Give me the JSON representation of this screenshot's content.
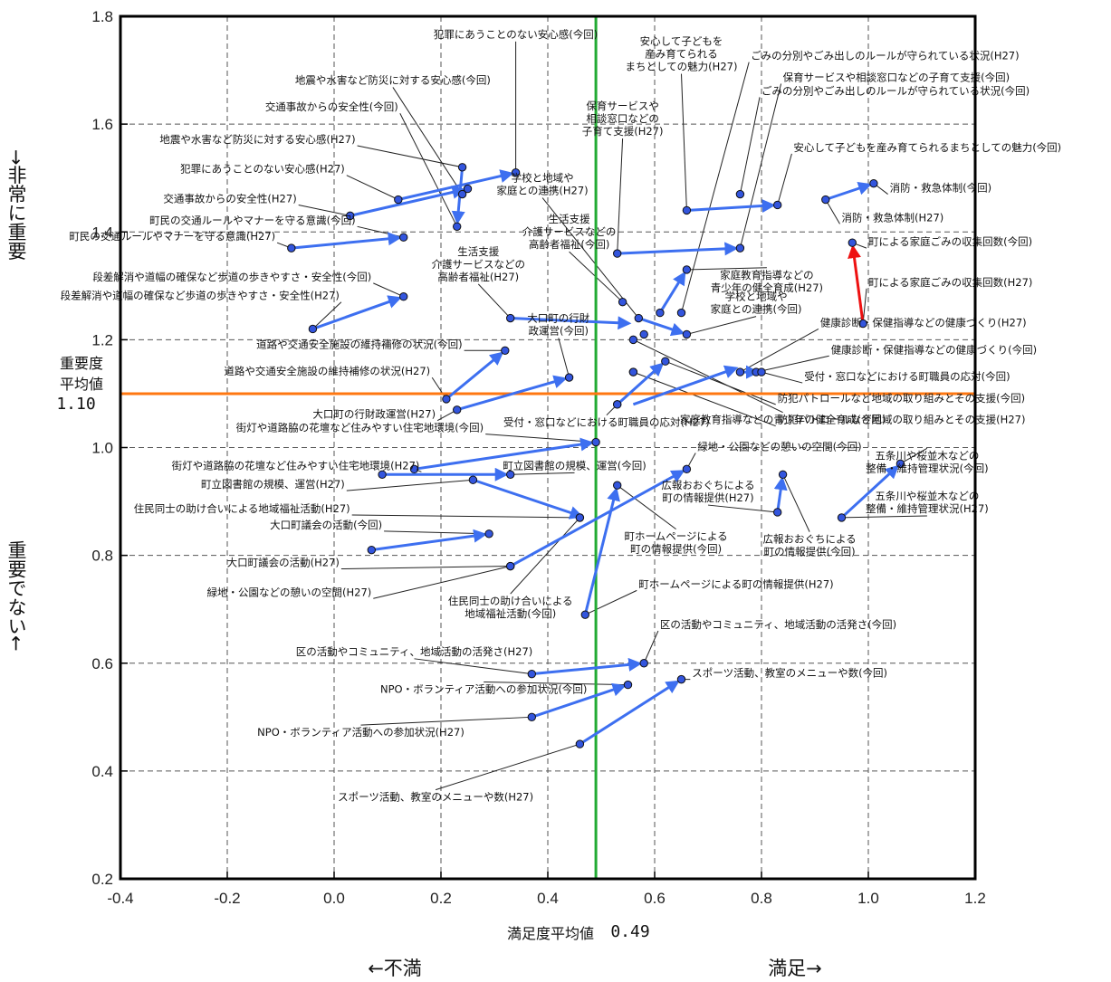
{
  "chart_data": {
    "type": "scatter",
    "xlabel": "満足度平均値",
    "x_mean_value": "0.49",
    "y_mean_label_line1": "重要度",
    "y_mean_label_line2": "平均値",
    "y_mean_value": "1.10",
    "top_side_label": "→非常に重要",
    "bottom_side_label": "重要でない←",
    "left_bottom_label": "←不満",
    "right_bottom_label": "満足→",
    "xlim": [
      -0.4,
      1.2
    ],
    "ylim": [
      0.2,
      1.8
    ],
    "x_ticks": [
      -0.4,
      -0.2,
      0.0,
      0.2,
      0.4,
      0.6,
      0.8,
      1.0,
      1.2
    ],
    "x_tick_labels": [
      "-0.4",
      "-0.2",
      "0.0",
      "0.2",
      "0.4",
      "0.6",
      "0.8",
      "1.0",
      "1.2"
    ],
    "y_ticks": [
      0.2,
      0.4,
      0.6,
      0.8,
      1.0,
      1.2,
      1.4,
      1.6,
      1.8
    ],
    "y_tick_labels": [
      "0.2",
      "0.4",
      "0.6",
      "0.8",
      "1.0",
      "1.2",
      "1.4",
      "1.6",
      "1.8"
    ],
    "x_mean": 0.49,
    "y_mean": 1.1,
    "grid": true,
    "colors": {
      "arrow": "#3d6ff0",
      "arrow_highlight": "#ee1111",
      "point": "#3355dd",
      "x_mean_line": "#22aa33",
      "y_mean_line": "#ff7711"
    },
    "points": [
      {
        "label": "犯罪にあうことのない安心感(今回)",
        "x": 0.34,
        "y": 1.51,
        "lx": 0.34,
        "ly": 1.76,
        "anchor": "middle"
      },
      {
        "label": "地震や水害など防災に対する安心感(今回)",
        "x": 0.24,
        "y": 1.47,
        "lx": 0.11,
        "ly": 1.675,
        "anchor": "middle"
      },
      {
        "label": "交通事故からの安全性(今回)",
        "x": 0.23,
        "y": 1.41,
        "lx": 0.12,
        "ly": 1.625,
        "anchor": "end"
      },
      {
        "label": "地震や水害など防災に対する安心感(H27)",
        "x": 0.24,
        "y": 1.52,
        "lx": 0.04,
        "ly": 1.565,
        "anchor": "end"
      },
      {
        "label": "犯罪にあうことのない安心感(H27)",
        "x": 0.12,
        "y": 1.46,
        "lx": 0.02,
        "ly": 1.51,
        "anchor": "end"
      },
      {
        "label": "交通事故からの安全性(H27)",
        "x": 0.03,
        "y": 1.43,
        "lx": -0.07,
        "ly": 1.455,
        "anchor": "end"
      },
      {
        "label": "町民の交通ルールやマナーを守る意識(今回)",
        "x": 0.13,
        "y": 1.39,
        "lx": 0.04,
        "ly": 1.415,
        "anchor": "end"
      },
      {
        "label": "町民の交通ルールやマナーを守る意識(H27)",
        "x": -0.08,
        "y": 1.37,
        "lx": -0.11,
        "ly": 1.385,
        "anchor": "end"
      },
      {
        "label": "段差解消や道幅の確保など歩道の歩きやすさ・安全性(今回)",
        "x": 0.13,
        "y": 1.28,
        "lx": 0.07,
        "ly": 1.31,
        "anchor": "end"
      },
      {
        "label": "段差解消や道幅の確保など歩道の歩きやすさ・安全性(H27)",
        "x": -0.04,
        "y": 1.22,
        "lx": 0.01,
        "ly": 1.275,
        "anchor": "end"
      },
      {
        "label": "道路や交通安全施設の維持補修の状況(今回)",
        "x": 0.32,
        "y": 1.18,
        "lx": 0.24,
        "ly": 1.185,
        "anchor": "end"
      },
      {
        "label": "道路や交通安全施設の維持補修の状況(H27)",
        "x": 0.21,
        "y": 1.09,
        "lx": 0.18,
        "ly": 1.135,
        "anchor": "end"
      },
      {
        "label": "大口町の行財|政運営(今回)",
        "x": 0.44,
        "y": 1.13,
        "lx": 0.42,
        "ly": 1.21,
        "anchor": "middle"
      },
      {
        "label": "大口町の行財政運営(H27)",
        "x": 0.23,
        "y": 1.07,
        "lx": 0.19,
        "ly": 1.055,
        "anchor": "end"
      },
      {
        "label": "生活支援|介護サービスなどの|高齢者福祉(今回)",
        "x": 0.54,
        "y": 1.27,
        "lx": 0.44,
        "ly": 1.37,
        "anchor": "middle"
      },
      {
        "label": "生活支援|介護サービスなどの|高齢者福祉(H27)",
        "x": 0.33,
        "y": 1.24,
        "lx": 0.27,
        "ly": 1.31,
        "anchor": "middle"
      },
      {
        "label": "学校と地域や|家庭との連携(H27)",
        "x": 0.57,
        "y": 1.24,
        "lx": 0.39,
        "ly": 1.47,
        "anchor": "middle"
      },
      {
        "label": "学校と地域や|家庭との連携(今回)",
        "x": 0.66,
        "y": 1.21,
        "lx": 0.79,
        "ly": 1.25,
        "anchor": "middle"
      },
      {
        "label": "保育サービスや|相談窓口などの|子育て支援(H27)",
        "x": 0.53,
        "y": 1.36,
        "lx": 0.54,
        "ly": 1.58,
        "anchor": "middle"
      },
      {
        "label": "保育サービスや相談窓口などの子育て支援(今回)",
        "x": 0.76,
        "y": 1.37,
        "lx": 0.84,
        "ly": 1.68,
        "anchor": "start"
      },
      {
        "label": "安心して子どもを|産み育てられる|まちとしての魅力(H27)",
        "x": 0.66,
        "y": 1.44,
        "lx": 0.65,
        "ly": 1.7,
        "anchor": "middle"
      },
      {
        "label": "安心して子どもを産み育てられるまちとしての魅力(今回)",
        "x": 0.83,
        "y": 1.45,
        "lx": 0.86,
        "ly": 1.55,
        "anchor": "start"
      },
      {
        "label": "ごみの分別やごみ出しのルールが守られている状況(H27)",
        "x": 0.65,
        "y": 1.25,
        "lx": 0.78,
        "ly": 1.72,
        "anchor": "start"
      },
      {
        "label": "ごみの分別やごみ出しのルールが守られている状況(今回)",
        "x": 0.76,
        "y": 1.47,
        "lx": 0.8,
        "ly": 1.655,
        "anchor": "start"
      },
      {
        "label": "消防・救急体制(今回)",
        "x": 1.01,
        "y": 1.49,
        "lx": 1.04,
        "ly": 1.475,
        "anchor": "start"
      },
      {
        "label": "消防・救急体制(H27)",
        "x": 0.92,
        "y": 1.46,
        "lx": 0.95,
        "ly": 1.42,
        "anchor": "start"
      },
      {
        "label": "町による家庭ごみの収集回数(今回)",
        "x": 0.97,
        "y": 1.38,
        "lx": 1.0,
        "ly": 1.375,
        "anchor": "start"
      },
      {
        "label": "町による家庭ごみの収集回数(H27)",
        "x": 0.99,
        "y": 1.23,
        "lx": 1.0,
        "ly": 1.3,
        "anchor": "start"
      },
      {
        "label": "家庭教育指導などの|青少年の健全育成(H27)",
        "x": 0.66,
        "y": 1.33,
        "lx": 0.81,
        "ly": 1.29,
        "anchor": "middle"
      },
      {
        "label": "家庭教育指導などの青少年の健全育成(今回)",
        "x": 0.56,
        "y": 1.2,
        "lx": 0.84,
        "ly": 1.045,
        "anchor": "middle"
      },
      {
        "label": "健康診断・保健指導などの健康づくり(H27)",
        "x": 0.76,
        "y": 1.14,
        "lx": 0.91,
        "ly": 1.225,
        "anchor": "start"
      },
      {
        "label": "健康診断・保健指導などの健康づくり(今回)",
        "x": 0.79,
        "y": 1.14,
        "lx": 0.93,
        "ly": 1.175,
        "anchor": "start"
      },
      {
        "label": "受付・窓口などにおける町職員の応対(今回)",
        "x": 0.8,
        "y": 1.14,
        "lx": 0.88,
        "ly": 1.125,
        "anchor": "start"
      },
      {
        "label": "受付・窓口などにおける町職員の応対(H27)",
        "x": 0.53,
        "y": 1.08,
        "lx": 0.51,
        "ly": 1.04,
        "anchor": "middle"
      },
      {
        "label": "防犯パトロールなど地域の取り組みとその支援(今回)",
        "x": 0.62,
        "y": 1.16,
        "lx": 0.83,
        "ly": 1.085,
        "anchor": "start"
      },
      {
        "label": "防犯パトロールなど地域の取り組みとその支援(H27)",
        "x": 0.56,
        "y": 1.14,
        "lx": 0.83,
        "ly": 1.045,
        "anchor": "start"
      },
      {
        "label": "街灯や道路脇の花壇など住みやすい住宅地環境(今回)",
        "x": 0.49,
        "y": 1.01,
        "lx": 0.28,
        "ly": 1.03,
        "anchor": "end"
      },
      {
        "label": "街灯や道路脇の花壇など住みやすい住宅地環境(H27)",
        "x": 0.15,
        "y": 0.96,
        "lx": 0.16,
        "ly": 0.96,
        "anchor": "end"
      },
      {
        "label": "町立図書館の規模、運営(今回)",
        "x": 0.33,
        "y": 0.95,
        "lx": 0.45,
        "ly": 0.96,
        "anchor": "middle"
      },
      {
        "label": "町立図書館の規模、運営(H27)",
        "x": 0.26,
        "y": 0.94,
        "lx": 0.02,
        "ly": 0.925,
        "anchor": "end"
      },
      {
        "label": "住民同士の助け合いによる地域福祉活動(H27)",
        "x": 0.46,
        "y": 0.87,
        "lx": 0.03,
        "ly": 0.88,
        "anchor": "end"
      },
      {
        "label": "住民同士の助け合いによる|地域福祉活動(今回)",
        "x": 0.46,
        "y": 0.87,
        "lx": 0.33,
        "ly": 0.685,
        "anchor": "middle"
      },
      {
        "label": "大口町議会の活動(今回)",
        "x": 0.29,
        "y": 0.84,
        "lx": 0.09,
        "ly": 0.85,
        "anchor": "end"
      },
      {
        "label": "大口町議会の活動(H27)",
        "x": 0.33,
        "y": 0.78,
        "lx": 0.01,
        "ly": 0.78,
        "anchor": "end"
      },
      {
        "label": "緑地・公園などの憩いの空間(H27)",
        "x": 0.33,
        "y": 0.78,
        "lx": 0.07,
        "ly": 0.725,
        "anchor": "end"
      },
      {
        "label": "緑地・公園などの憩いの空間(今回)",
        "x": 0.66,
        "y": 0.96,
        "lx": 0.68,
        "ly": 0.995,
        "anchor": "start"
      },
      {
        "label": "町ホームページによる|町の情報提供(今回)",
        "x": 0.53,
        "y": 0.93,
        "lx": 0.64,
        "ly": 0.805,
        "anchor": "middle"
      },
      {
        "label": "町ホームページによる町の情報提供(H27)",
        "x": 0.47,
        "y": 0.69,
        "lx": 0.57,
        "ly": 0.74,
        "anchor": "start"
      },
      {
        "label": "広報おおぐちによる|町の情報提供(H27)",
        "x": 0.83,
        "y": 0.88,
        "lx": 0.7,
        "ly": 0.9,
        "anchor": "middle"
      },
      {
        "label": "広報おおぐちによる|町の情報提供(今回)",
        "x": 0.84,
        "y": 0.95,
        "lx": 0.89,
        "ly": 0.8,
        "anchor": "middle"
      },
      {
        "label": "五条川や桜並木などの|整備・維持管理状況(今回)",
        "x": 1.06,
        "y": 0.97,
        "lx": 1.11,
        "ly": 0.955,
        "anchor": "middle"
      },
      {
        "label": "五条川や桜並木などの|整備・維持管理状況(H27)",
        "x": 0.95,
        "y": 0.87,
        "lx": 1.11,
        "ly": 0.88,
        "anchor": "middle"
      },
      {
        "label": "区の活動やコミュニティ、地域活動の活発さ(H27)",
        "x": 0.37,
        "y": 0.58,
        "lx": 0.15,
        "ly": 0.615,
        "anchor": "middle"
      },
      {
        "label": "区の活動やコミュニティ、地域活動の活発さ(今回)",
        "x": 0.58,
        "y": 0.6,
        "lx": 0.61,
        "ly": 0.665,
        "anchor": "start"
      },
      {
        "label": "NPO・ボランティア活動への参加状況(今回)",
        "x": 0.55,
        "y": 0.56,
        "lx": 0.28,
        "ly": 0.545,
        "anchor": "middle"
      },
      {
        "label": "NPO・ボランティア活動への参加状況(H27)",
        "x": 0.37,
        "y": 0.5,
        "lx": 0.05,
        "ly": 0.465,
        "anchor": "middle"
      },
      {
        "label": "スポーツ活動、教室のメニューや数(今回)",
        "x": 0.65,
        "y": 0.57,
        "lx": 0.67,
        "ly": 0.575,
        "anchor": "start"
      },
      {
        "label": "スポーツ活動、教室のメニューや数(H27)",
        "x": 0.46,
        "y": 0.45,
        "lx": 0.19,
        "ly": 0.345,
        "anchor": "middle"
      }
    ],
    "arrows": [
      {
        "x1": 0.12,
        "y1": 1.46,
        "x2": 0.34,
        "y2": 1.51,
        "highlight": false
      },
      {
        "x1": 0.24,
        "y1": 1.52,
        "x2": 0.23,
        "y2": 1.41,
        "highlight": false
      },
      {
        "x1": 0.03,
        "y1": 1.43,
        "x2": 0.25,
        "y2": 1.48,
        "highlight": false
      },
      {
        "x1": -0.08,
        "y1": 1.37,
        "x2": 0.13,
        "y2": 1.39,
        "highlight": false
      },
      {
        "x1": -0.04,
        "y1": 1.22,
        "x2": 0.13,
        "y2": 1.28,
        "highlight": false
      },
      {
        "x1": 0.21,
        "y1": 1.09,
        "x2": 0.32,
        "y2": 1.18,
        "highlight": false
      },
      {
        "x1": 0.23,
        "y1": 1.07,
        "x2": 0.44,
        "y2": 1.13,
        "highlight": false
      },
      {
        "x1": 0.33,
        "y1": 1.24,
        "x2": 0.56,
        "y2": 1.23,
        "highlight": false
      },
      {
        "x1": 0.57,
        "y1": 1.24,
        "x2": 0.66,
        "y2": 1.21,
        "highlight": false
      },
      {
        "x1": 0.53,
        "y1": 1.36,
        "x2": 0.76,
        "y2": 1.37,
        "highlight": false
      },
      {
        "x1": 0.66,
        "y1": 1.44,
        "x2": 0.83,
        "y2": 1.45,
        "highlight": false
      },
      {
        "x1": 0.92,
        "y1": 1.46,
        "x2": 1.01,
        "y2": 1.49,
        "highlight": false
      },
      {
        "x1": 0.99,
        "y1": 1.23,
        "x2": 0.97,
        "y2": 1.38,
        "highlight": true
      },
      {
        "x1": 0.61,
        "y1": 1.25,
        "x2": 0.66,
        "y2": 1.33,
        "highlight": false
      },
      {
        "x1": 0.76,
        "y1": 1.14,
        "x2": 0.8,
        "y2": 1.14,
        "highlight": false
      },
      {
        "x1": 0.56,
        "y1": 1.08,
        "x2": 0.76,
        "y2": 1.15,
        "highlight": false
      },
      {
        "x1": 0.53,
        "y1": 1.08,
        "x2": 0.62,
        "y2": 1.16,
        "highlight": false
      },
      {
        "x1": 0.15,
        "y1": 0.96,
        "x2": 0.49,
        "y2": 1.01,
        "highlight": false
      },
      {
        "x1": 0.09,
        "y1": 0.95,
        "x2": 0.33,
        "y2": 0.95,
        "highlight": false
      },
      {
        "x1": 0.26,
        "y1": 0.94,
        "x2": 0.47,
        "y2": 0.87,
        "highlight": false
      },
      {
        "x1": 0.07,
        "y1": 0.81,
        "x2": 0.29,
        "y2": 0.84,
        "highlight": false
      },
      {
        "x1": 0.33,
        "y1": 0.78,
        "x2": 0.66,
        "y2": 0.96,
        "highlight": false
      },
      {
        "x1": 0.47,
        "y1": 0.69,
        "x2": 0.53,
        "y2": 0.93,
        "highlight": false
      },
      {
        "x1": 0.83,
        "y1": 0.88,
        "x2": 0.84,
        "y2": 0.95,
        "highlight": false
      },
      {
        "x1": 0.95,
        "y1": 0.87,
        "x2": 1.06,
        "y2": 0.97,
        "highlight": false
      },
      {
        "x1": 0.37,
        "y1": 0.58,
        "x2": 0.58,
        "y2": 0.6,
        "highlight": false
      },
      {
        "x1": 0.37,
        "y1": 0.5,
        "x2": 0.55,
        "y2": 0.56,
        "highlight": false
      },
      {
        "x1": 0.46,
        "y1": 0.45,
        "x2": 0.65,
        "y2": 0.57,
        "highlight": false
      }
    ],
    "extra_points": [
      {
        "x": 0.58,
        "y": 1.21
      },
      {
        "x": 0.56,
        "y": 1.14
      },
      {
        "x": 0.25,
        "y": 1.48
      },
      {
        "x": 0.09,
        "y": 0.95
      },
      {
        "x": 0.07,
        "y": 0.81
      },
      {
        "x": 0.61,
        "y": 1.25
      },
      {
        "x": 0.53,
        "y": 1.08
      }
    ]
  }
}
